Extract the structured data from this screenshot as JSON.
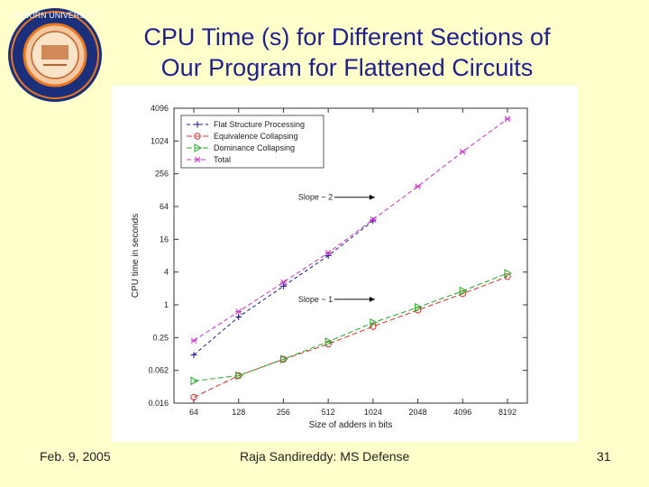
{
  "slide": {
    "title_line1": "CPU Time (s) for Different Sections of",
    "title_line2": "Our Program for Flattened Circuits",
    "footer_date": "Feb. 9, 2005",
    "footer_center": "Raja Sandireddy: MS Defense",
    "page_number": "31"
  },
  "logo": {
    "ring_text_top": "AUBURN UNIVERSITY",
    "colors": {
      "ring": "#1b2f7a",
      "accent": "#e87722",
      "inner": "#f4c8a0"
    }
  },
  "chart_data": {
    "type": "line",
    "title": "",
    "xlabel": "Size of adders in bits",
    "ylabel": "CPU time in seconds",
    "x_scale": "log2",
    "y_scale": "log2",
    "categories": [
      "64",
      "128",
      "256",
      "512",
      "1024",
      "2048",
      "4096",
      "8192"
    ],
    "y_ticks": [
      "4096",
      "1024",
      "256",
      "64",
      "16",
      "4",
      "1",
      "0.25",
      "0.062",
      "0.016"
    ],
    "y_tick_values": [
      4096,
      1024,
      256,
      64,
      16,
      4,
      1,
      0.25,
      0.0625,
      0.015625
    ],
    "ylim": [
      0.015625,
      4096
    ],
    "series": [
      {
        "name": "Flat Structure Processing",
        "color": "#1a1a8c",
        "marker": "plus",
        "dash": "4,3",
        "values": [
          0.12,
          0.6,
          2.2,
          8,
          35,
          null,
          null,
          null
        ]
      },
      {
        "name": "Equivalence Collapsing",
        "color": "#d9302b",
        "marker": "circle",
        "dash": "6,3",
        "values": [
          0.02,
          0.05,
          0.1,
          0.19,
          0.4,
          0.8,
          1.6,
          3.3
        ]
      },
      {
        "name": "Dominance Collapsing",
        "color": "#22aa22",
        "marker": "triangle",
        "dash": "6,3",
        "values": [
          0.04,
          0.05,
          0.1,
          0.21,
          0.47,
          0.9,
          1.8,
          3.8
        ]
      },
      {
        "name": "Total",
        "color": "#cc33cc",
        "marker": "x",
        "dash": "5,3",
        "values": [
          0.22,
          0.75,
          2.6,
          9,
          37,
          150,
          650,
          2600
        ]
      }
    ],
    "annotations": [
      {
        "text": "Slope ~ 2",
        "arrow_to_category": "1024",
        "arrow_to_value": 60
      },
      {
        "text": "Slope ~ 1",
        "arrow_to_category": "1024",
        "arrow_to_value": 0.8
      }
    ],
    "legend_position": "top-left"
  }
}
